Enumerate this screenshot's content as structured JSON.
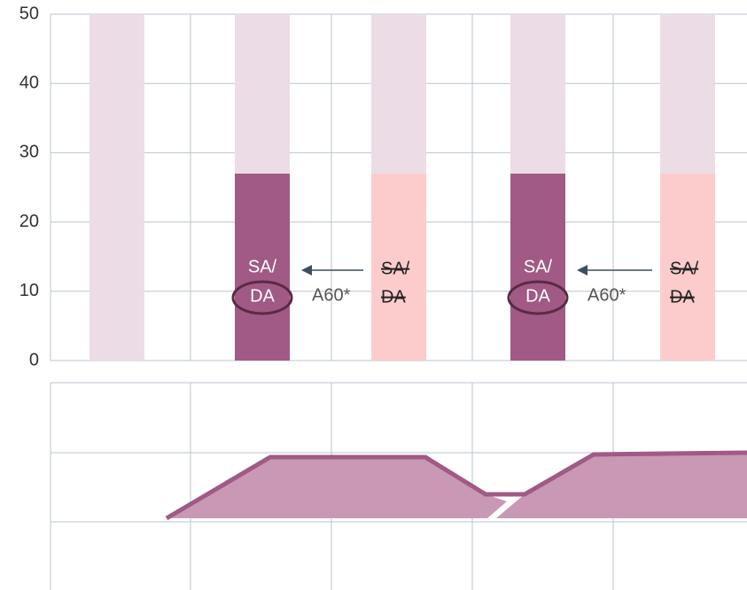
{
  "chart_data": {
    "type": "stacked_bar",
    "categories": [
      null,
      null,
      null,
      null,
      null
    ],
    "series": [
      {
        "colors": [
          "#a05a85",
          "#a05a85",
          "#fccccc",
          "#a05a85",
          "#fccccc"
        ],
        "values": [
          0,
          27,
          27,
          27,
          27
        ]
      },
      {
        "color": "#ecdce6",
        "values": [
          50,
          23,
          23,
          23,
          23
        ]
      }
    ],
    "ylim": [
      0,
      50
    ],
    "yticks": [
      0,
      10,
      20,
      30,
      40,
      50
    ],
    "grid": true,
    "annotations": [
      {
        "inside": [
          "SA/",
          "DA"
        ],
        "arrow_label": "A60*",
        "struck": [
          "SA/",
          "DA"
        ]
      },
      {
        "inside": [
          "SA/",
          "DA"
        ],
        "arrow_label": "A60*",
        "struck": [
          "SA/",
          "DA"
        ]
      }
    ]
  }
}
